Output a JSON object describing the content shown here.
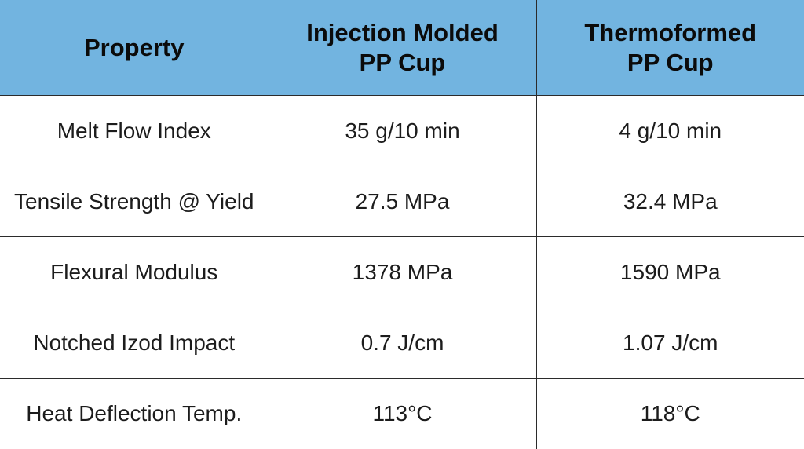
{
  "table": {
    "headers": {
      "property": "Property",
      "injection_line1": "Injection Molded",
      "injection_line2": "PP Cup",
      "thermo_line1": "Thermoformed",
      "thermo_line2": "PP Cup"
    },
    "rows": [
      {
        "property": "Melt Flow Index",
        "injection": "35 g/10 min",
        "thermo": "4 g/10 min"
      },
      {
        "property": "Tensile Strength @ Yield",
        "injection": "27.5 MPa",
        "thermo": "32.4 MPa"
      },
      {
        "property": "Flexural Modulus",
        "injection": "1378 MPa",
        "thermo": "1590 MPa"
      },
      {
        "property": "Notched Izod Impact",
        "injection": "0.7 J/cm",
        "thermo": "1.07 J/cm"
      },
      {
        "property": "Heat Deflection Temp.",
        "injection": "113°C",
        "thermo": "118°C"
      }
    ]
  },
  "colors": {
    "header_background": "#72b4e0",
    "border": "#2b2b2b",
    "body_background": "#ffffff"
  }
}
